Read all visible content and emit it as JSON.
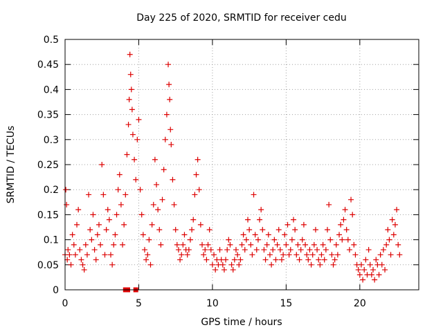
{
  "chart_data": {
    "type": "scatter",
    "title": "Day 225 of 2020, SRMTID for receiver cedu",
    "xlabel": "GPS time / hours",
    "ylabel": "SRMTID / TECUs",
    "xlim": [
      0,
      24
    ],
    "ylim": [
      0,
      0.5
    ],
    "x_ticks": [
      0,
      5,
      10,
      15,
      20
    ],
    "x_tick_labels": [
      "0",
      "5",
      "10",
      "15",
      "20"
    ],
    "y_ticks": [
      0,
      0.05,
      0.1,
      0.15,
      0.2,
      0.25,
      0.3,
      0.35,
      0.4,
      0.45,
      0.5
    ],
    "y_tick_labels": [
      "0",
      "0.05",
      "0.1",
      "0.15",
      "0.2",
      "0.25",
      "0.3",
      "0.35",
      "0.4",
      "0.45",
      "0.5"
    ],
    "grid": true,
    "marker": "plus",
    "color": "#dd0000",
    "series": [
      {
        "name": "SRMTID",
        "x": [
          0.0,
          0.05,
          0.1,
          0.15,
          0.2,
          0.3,
          0.4,
          0.5,
          0.6,
          0.7,
          0.8,
          0.9,
          1.0,
          1.1,
          1.2,
          1.3,
          1.4,
          1.5,
          1.6,
          1.7,
          1.8,
          1.9,
          2.0,
          2.1,
          2.2,
          2.3,
          2.4,
          2.5,
          2.6,
          2.7,
          2.8,
          2.9,
          3.0,
          3.1,
          3.2,
          3.3,
          3.4,
          3.5,
          3.6,
          3.7,
          3.8,
          3.9,
          4.0,
          4.1,
          4.2,
          4.3,
          4.35,
          4.4,
          4.45,
          4.5,
          4.55,
          4.6,
          4.7,
          4.8,
          4.9,
          5.0,
          5.1,
          5.2,
          5.3,
          5.4,
          5.5,
          5.6,
          5.7,
          5.8,
          5.9,
          6.0,
          6.1,
          6.2,
          6.3,
          6.4,
          6.5,
          6.6,
          6.7,
          6.8,
          6.9,
          7.0,
          7.05,
          7.1,
          7.15,
          7.2,
          7.3,
          7.4,
          7.5,
          7.6,
          7.7,
          7.8,
          7.9,
          8.0,
          8.1,
          8.2,
          8.3,
          8.4,
          8.5,
          8.6,
          8.7,
          8.8,
          8.9,
          9.0,
          9.1,
          9.2,
          9.3,
          9.4,
          9.5,
          9.6,
          9.7,
          9.8,
          9.9,
          10.0,
          10.1,
          10.2,
          10.3,
          10.4,
          10.5,
          10.6,
          10.7,
          10.8,
          10.9,
          11.0,
          11.1,
          11.2,
          11.3,
          11.4,
          11.5,
          11.6,
          11.7,
          11.8,
          11.9,
          12.0,
          12.1,
          12.2,
          12.3,
          12.4,
          12.5,
          12.6,
          12.7,
          12.8,
          12.9,
          13.0,
          13.1,
          13.2,
          13.3,
          13.4,
          13.5,
          13.6,
          13.7,
          13.8,
          13.9,
          14.0,
          14.1,
          14.2,
          14.3,
          14.4,
          14.5,
          14.6,
          14.7,
          14.8,
          14.9,
          15.0,
          15.1,
          15.2,
          15.3,
          15.4,
          15.5,
          15.6,
          15.7,
          15.8,
          15.9,
          16.0,
          16.1,
          16.2,
          16.3,
          16.4,
          16.5,
          16.6,
          16.7,
          16.8,
          16.9,
          17.0,
          17.1,
          17.2,
          17.3,
          17.4,
          17.5,
          17.6,
          17.7,
          17.8,
          17.9,
          18.0,
          18.1,
          18.2,
          18.3,
          18.4,
          18.5,
          18.6,
          18.7,
          18.8,
          18.9,
          19.0,
          19.1,
          19.2,
          19.3,
          19.4,
          19.5,
          19.6,
          19.7,
          19.8,
          19.9,
          20.0,
          20.1,
          20.2,
          20.3,
          20.4,
          20.5,
          20.6,
          20.7,
          20.8,
          20.9,
          21.0,
          21.1,
          21.2,
          21.3,
          21.4,
          21.5,
          21.6,
          21.7,
          21.8,
          21.9,
          22.0,
          22.1,
          22.2,
          22.3,
          22.4,
          22.5,
          22.6,
          22.7
        ],
        "y": [
          0.07,
          0.2,
          0.17,
          0.06,
          0.08,
          0.07,
          0.05,
          0.11,
          0.09,
          0.07,
          0.13,
          0.16,
          0.08,
          0.06,
          0.05,
          0.04,
          0.09,
          0.07,
          0.19,
          0.12,
          0.1,
          0.15,
          0.08,
          0.06,
          0.11,
          0.13,
          0.09,
          0.25,
          0.19,
          0.07,
          0.12,
          0.16,
          0.14,
          0.07,
          0.05,
          0.09,
          0.11,
          0.15,
          0.2,
          0.23,
          0.17,
          0.09,
          0.13,
          0.19,
          0.27,
          0.33,
          0.38,
          0.47,
          0.43,
          0.4,
          0.36,
          0.31,
          0.26,
          0.22,
          0.3,
          0.34,
          0.2,
          0.15,
          0.11,
          0.08,
          0.06,
          0.07,
          0.1,
          0.05,
          0.13,
          0.17,
          0.26,
          0.21,
          0.16,
          0.12,
          0.09,
          0.18,
          0.24,
          0.3,
          0.35,
          0.45,
          0.41,
          0.38,
          0.32,
          0.29,
          0.22,
          0.17,
          0.12,
          0.09,
          0.08,
          0.06,
          0.07,
          0.09,
          0.11,
          0.08,
          0.07,
          0.08,
          0.1,
          0.12,
          0.14,
          0.19,
          0.23,
          0.26,
          0.2,
          0.13,
          0.09,
          0.07,
          0.08,
          0.06,
          0.09,
          0.12,
          0.08,
          0.05,
          0.07,
          0.04,
          0.06,
          0.05,
          0.08,
          0.06,
          0.05,
          0.04,
          0.06,
          0.08,
          0.1,
          0.09,
          0.05,
          0.04,
          0.06,
          0.08,
          0.07,
          0.05,
          0.06,
          0.09,
          0.11,
          0.08,
          0.1,
          0.14,
          0.12,
          0.09,
          0.07,
          0.19,
          0.11,
          0.08,
          0.1,
          0.14,
          0.16,
          0.12,
          0.08,
          0.06,
          0.09,
          0.11,
          0.07,
          0.05,
          0.08,
          0.1,
          0.06,
          0.09,
          0.12,
          0.08,
          0.06,
          0.07,
          0.11,
          0.09,
          0.13,
          0.07,
          0.08,
          0.1,
          0.14,
          0.12,
          0.07,
          0.09,
          0.06,
          0.08,
          0.1,
          0.13,
          0.09,
          0.07,
          0.06,
          0.08,
          0.05,
          0.07,
          0.09,
          0.12,
          0.08,
          0.06,
          0.05,
          0.07,
          0.09,
          0.06,
          0.08,
          0.12,
          0.17,
          0.1,
          0.07,
          0.05,
          0.06,
          0.09,
          0.07,
          0.11,
          0.13,
          0.1,
          0.14,
          0.16,
          0.12,
          0.1,
          0.08,
          0.18,
          0.15,
          0.09,
          0.07,
          0.05,
          0.04,
          0.03,
          0.05,
          0.02,
          0.04,
          0.06,
          0.03,
          0.08,
          0.05,
          0.03,
          0.04,
          0.02,
          0.06,
          0.05,
          0.03,
          0.07,
          0.05,
          0.08,
          0.04,
          0.09,
          0.12,
          0.1,
          0.07,
          0.14,
          0.11,
          0.13,
          0.16,
          0.09,
          0.07
        ]
      }
    ],
    "zero_markers": [
      4.1,
      4.25,
      4.8
    ]
  }
}
